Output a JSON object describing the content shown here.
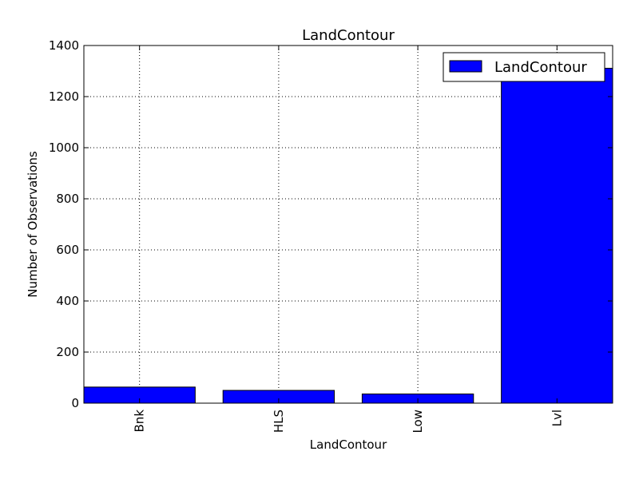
{
  "chart_data": {
    "type": "bar",
    "title": "LandContour",
    "xlabel": "LandContour",
    "ylabel": "Number of Observations",
    "categories": [
      "Bnk",
      "HLS",
      "Low",
      "Lvl"
    ],
    "series": [
      {
        "name": "LandContour",
        "values": [
          63,
          50,
          36,
          1311
        ]
      }
    ],
    "ylim": [
      0,
      1400
    ],
    "yticks": [
      0,
      200,
      400,
      600,
      800,
      1000,
      1200,
      1400
    ],
    "grid": true,
    "legend_position": "top-right",
    "bar_color": "#0000ff"
  }
}
